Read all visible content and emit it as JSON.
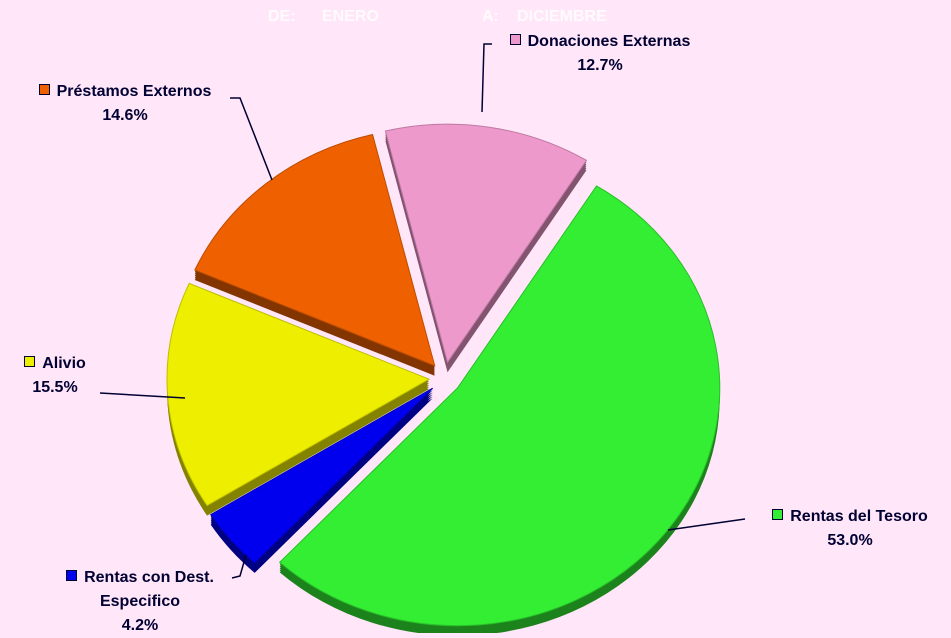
{
  "chart_data": {
    "type": "pie",
    "annotations": [
      "DE:",
      "ENERO",
      "A:",
      "DICIEMBRE"
    ],
    "categories": [
      "Rentas del Tesoro",
      "Rentas con Dest. Especifico",
      "Alivio",
      "Préstamos Externos",
      "Donaciones Externas"
    ],
    "values": [
      53.0,
      4.2,
      15.5,
      14.6,
      12.7
    ],
    "value_labels": [
      "53.0%",
      "4.2%",
      "15.5%",
      "14.6%",
      "12.7%"
    ],
    "colors": [
      "#33ee33",
      "#0000ee",
      "#eeee00",
      "#ee6000",
      "#ee99cc"
    ],
    "start_angle": 32
  }
}
